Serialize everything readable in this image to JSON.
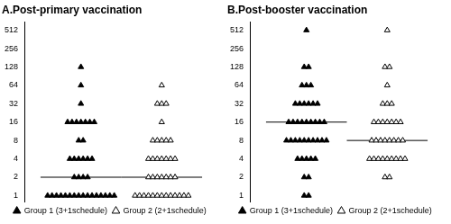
{
  "chart_data": [
    {
      "type": "scatter",
      "title": "A.Post-primary vaccination",
      "series": [
        {
          "name": "Group 1 (3+1schedule)",
          "color": "#000000",
          "marker": "filled_triangle",
          "median": 2,
          "values": [
            128,
            64,
            32,
            16,
            16,
            16,
            16,
            16,
            16,
            16,
            8,
            8,
            4,
            4,
            4,
            4,
            4,
            4,
            2,
            2,
            2,
            2,
            1,
            1,
            1,
            1,
            1,
            1,
            1,
            1,
            1,
            1,
            1,
            1,
            1,
            1,
            1,
            1
          ]
        },
        {
          "name": "Group 2 (2+1schedule)",
          "color": "#000000",
          "marker": "open_triangle",
          "median": 2,
          "values": [
            64,
            32,
            32,
            32,
            16,
            8,
            8,
            8,
            8,
            8,
            4,
            4,
            4,
            4,
            4,
            4,
            4,
            2,
            2,
            2,
            2,
            2,
            2,
            2,
            1,
            1,
            1,
            1,
            1,
            1,
            1,
            1,
            1,
            1,
            1,
            1,
            1
          ]
        }
      ],
      "ylim": [
        0.8,
        700
      ],
      "yticks": [
        1,
        2,
        4,
        8,
        16,
        32,
        64,
        128,
        256,
        512
      ],
      "log": "y",
      "grid": false,
      "legend": "bottom",
      "tick_labels": "y"
    },
    {
      "type": "scatter",
      "title": "B.Post-booster vaccination",
      "series": [
        {
          "name": "Group 1 (3+1schedule)",
          "color": "#000000",
          "marker": "filled_triangle",
          "median": 16,
          "values": [
            512,
            128,
            128,
            64,
            64,
            64,
            32,
            32,
            32,
            32,
            32,
            32,
            16,
            16,
            16,
            16,
            16,
            16,
            16,
            16,
            16,
            8,
            8,
            8,
            8,
            8,
            8,
            8,
            8,
            8,
            8,
            4,
            4,
            4,
            4,
            4,
            2,
            2,
            1,
            1
          ]
        },
        {
          "name": "Group 2 (2+1schedule)",
          "color": "#000000",
          "marker": "open_triangle",
          "median": 8,
          "values": [
            512,
            128,
            128,
            64,
            32,
            32,
            32,
            16,
            16,
            16,
            16,
            16,
            16,
            16,
            8,
            8,
            8,
            8,
            8,
            8,
            8,
            8,
            4,
            4,
            4,
            4,
            4,
            4,
            4,
            4,
            4,
            2,
            2
          ]
        }
      ],
      "ylim": [
        0.8,
        700
      ],
      "yticks": [
        1,
        2,
        4,
        8,
        16,
        32,
        64,
        128,
        256,
        512
      ],
      "log": "y",
      "grid": false,
      "legend": "bottom",
      "tick_labels": "y"
    }
  ]
}
